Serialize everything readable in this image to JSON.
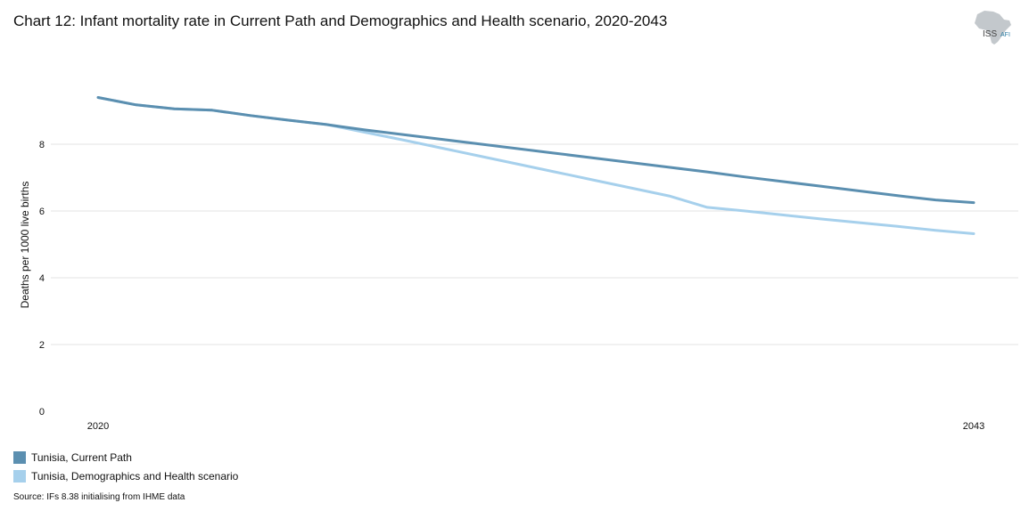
{
  "chart_data": {
    "type": "line",
    "title": "Chart 12: Infant mortality rate in Current Path and Demographics and Health scenario, 2020-2043",
    "ylabel": "Deaths per 1000 live births",
    "xlabel": "",
    "x_range": [
      2020,
      2043
    ],
    "x_tick_labels": [
      "2020",
      "2043"
    ],
    "ylim": [
      0,
      10
    ],
    "y_ticks": [
      0,
      2,
      4,
      6,
      8
    ],
    "grid": true,
    "legend_position": "bottom-left",
    "series": [
      {
        "name": "Tunisia, Current Path",
        "color": "#5b8fb0",
        "x": [
          2020,
          2021,
          2022,
          2023,
          2024,
          2025,
          2026,
          2027,
          2028,
          2029,
          2030,
          2031,
          2032,
          2033,
          2034,
          2035,
          2036,
          2037,
          2038,
          2039,
          2040,
          2041,
          2042,
          2043
        ],
        "values": [
          9.4,
          9.18,
          9.06,
          9.02,
          8.86,
          8.72,
          8.59,
          8.43,
          8.29,
          8.15,
          8.01,
          7.87,
          7.73,
          7.59,
          7.45,
          7.31,
          7.17,
          7.02,
          6.88,
          6.74,
          6.6,
          6.46,
          6.33,
          6.25
        ]
      },
      {
        "name": "Tunisia, Demographics and Health scenario",
        "color": "#a6d0ec",
        "x": [
          2020,
          2021,
          2022,
          2023,
          2024,
          2025,
          2026,
          2027,
          2028,
          2029,
          2030,
          2031,
          2032,
          2033,
          2034,
          2035,
          2036,
          2037,
          2038,
          2039,
          2040,
          2041,
          2042,
          2043
        ],
        "values": [
          9.4,
          9.18,
          9.06,
          9.02,
          8.86,
          8.72,
          8.59,
          8.36,
          8.13,
          7.89,
          7.65,
          7.41,
          7.17,
          6.93,
          6.69,
          6.45,
          6.11,
          6.0,
          5.88,
          5.76,
          5.65,
          5.54,
          5.42,
          5.32
        ]
      }
    ]
  },
  "logo": {
    "text_main": "ISS",
    "text_sub": "AFI",
    "icon": "africa-map-icon"
  },
  "source": "Source: IFs 8.38 initialising from IHME data"
}
